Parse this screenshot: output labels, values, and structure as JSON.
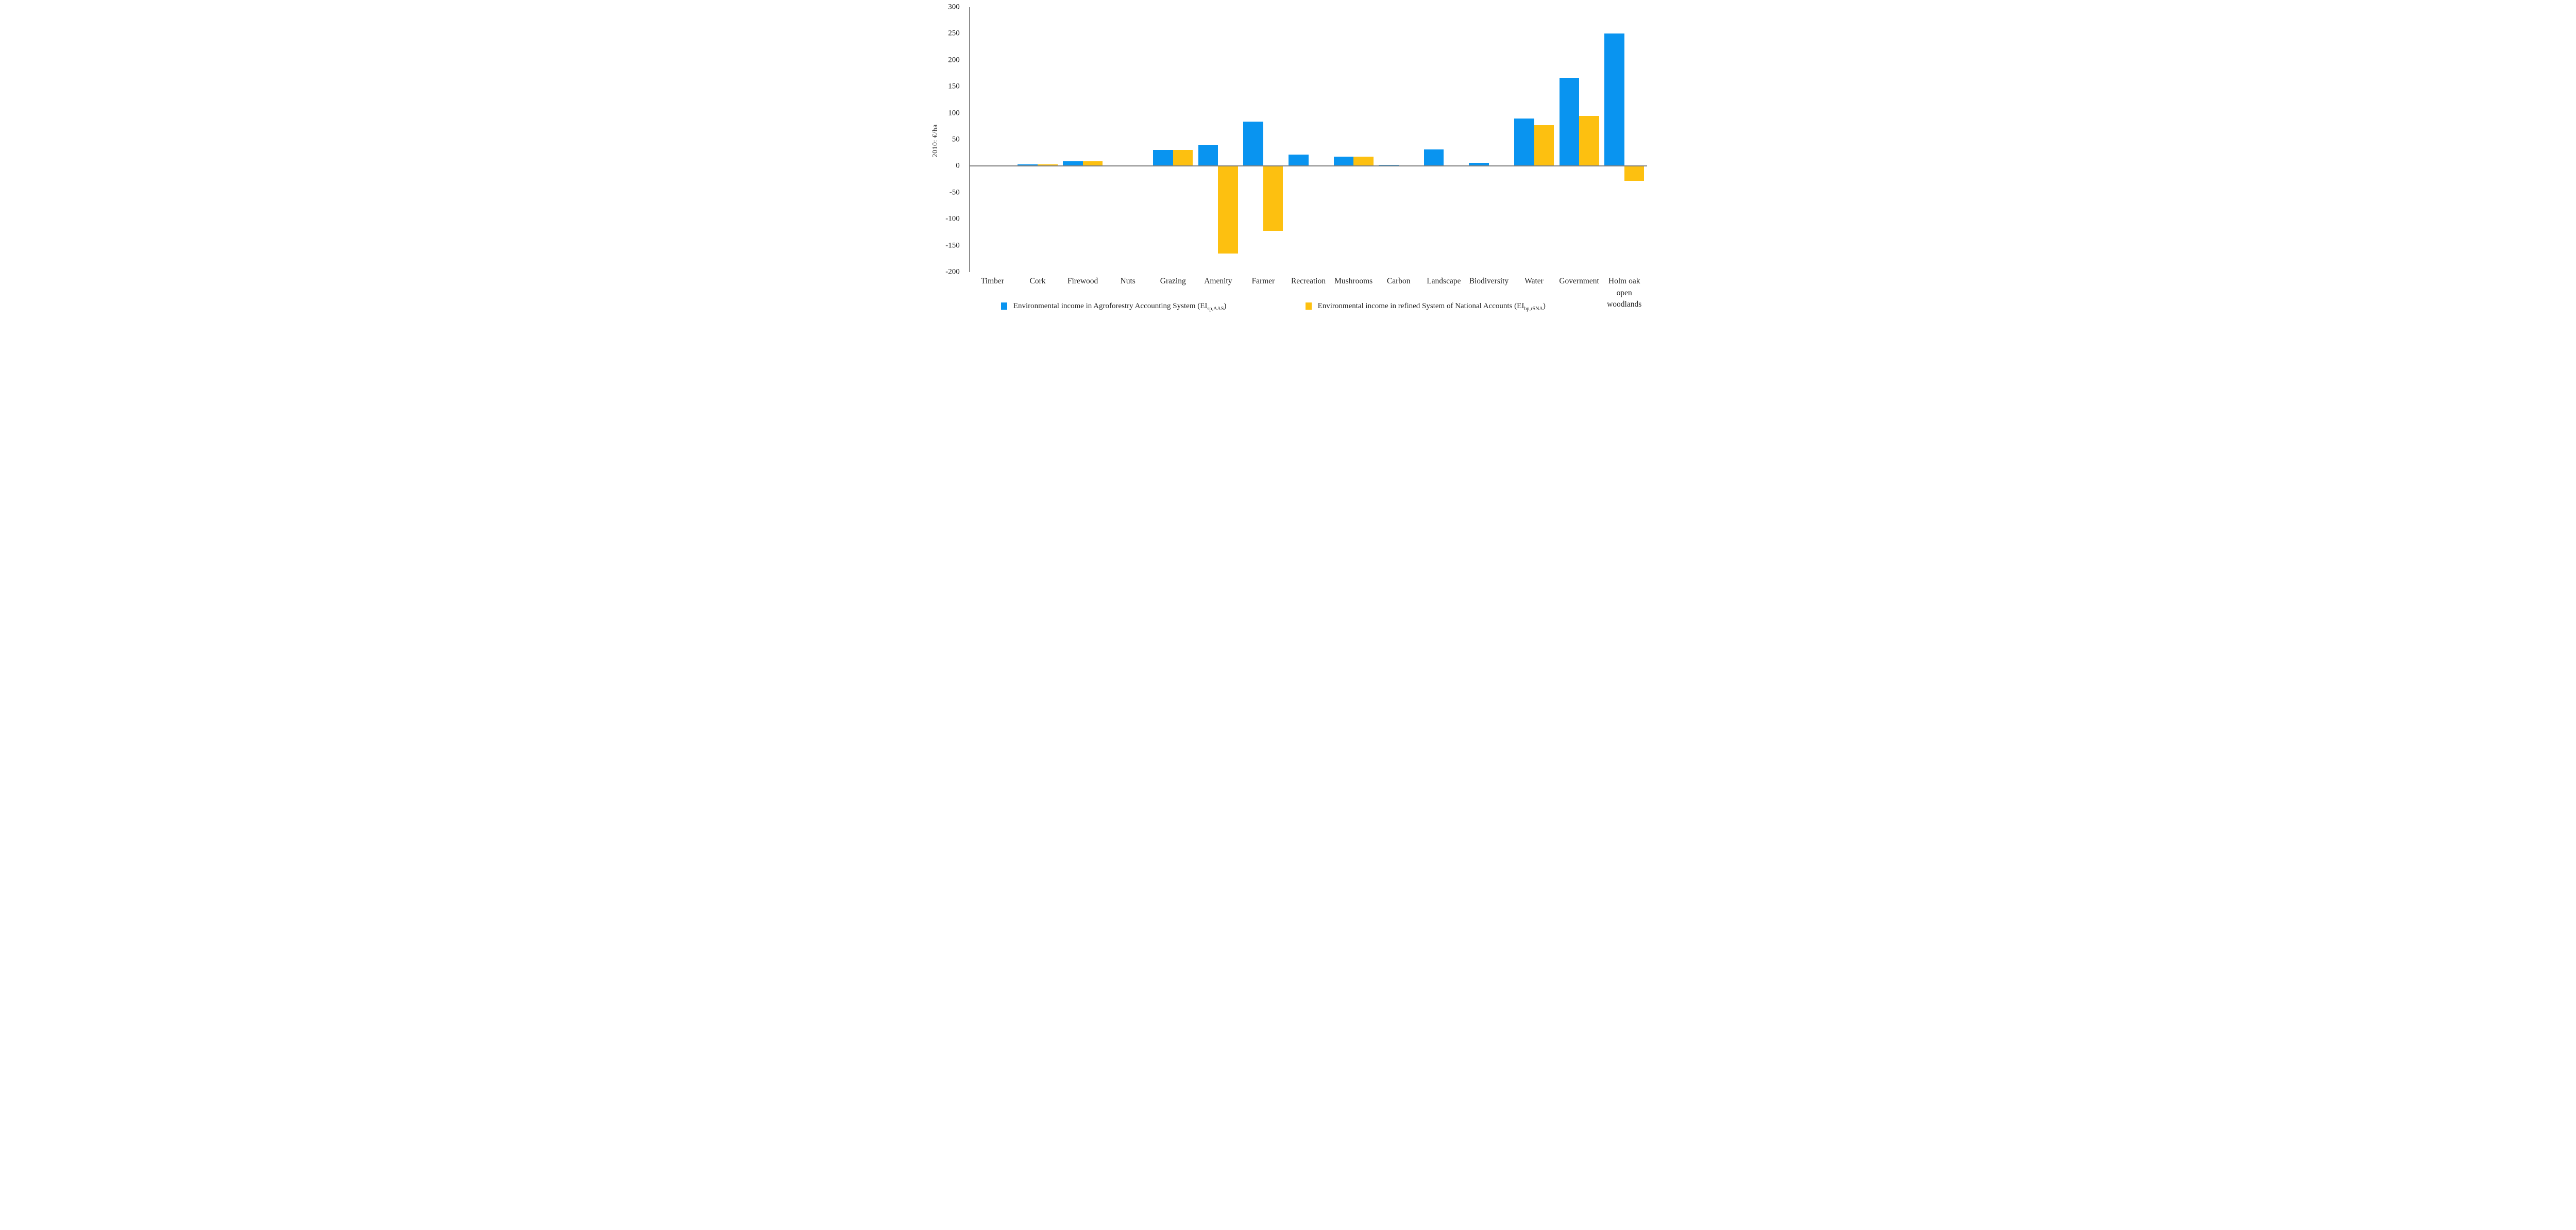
{
  "chart_data": {
    "type": "bar",
    "title": "",
    "xlabel": "",
    "ylabel": "2010: €/ha",
    "ylim": [
      -200,
      300
    ],
    "y_ticks": [
      300,
      250,
      200,
      150,
      100,
      50,
      0,
      -50,
      -100,
      -150,
      -200
    ],
    "grid": false,
    "legend_position": "bottom",
    "categories": [
      "Timber",
      "Cork",
      "Firewood",
      "Nuts",
      "Grazing",
      "Amenity",
      "Farmer",
      "Recreation",
      "Mushrooms",
      "Carbon",
      "Landscape",
      "Biodiversity",
      "Water",
      "Government",
      "Holm oak open woodlands"
    ],
    "series": [
      {
        "name": "Environmental income in Agroforestry Accounting System (EI sp,AAS)",
        "color": "#0994F0",
        "values": [
          1,
          3,
          9,
          1,
          31,
          40,
          84,
          22,
          18,
          2,
          32,
          6,
          90,
          167,
          250
        ]
      },
      {
        "name": "Environmental income in refined System of National Accounts (EI bp,rSNA)",
        "color": "#FDC010",
        "values": [
          1,
          3,
          9,
          1,
          31,
          -165,
          -122,
          0,
          18,
          0,
          0,
          0,
          77,
          95,
          -28
        ]
      }
    ]
  },
  "y_axis": {
    "title": "2010: €/ha"
  },
  "legend": {
    "items": [
      {
        "prefix": "Environmental income in Agroforestry Accounting System (EI",
        "sub": "sp,AAS",
        "suffix": ")",
        "color": "#0994F0"
      },
      {
        "prefix": "Environmental income in refined System of National Accounts (EI",
        "sub": "bp,rSNA",
        "suffix": ")",
        "color": "#FDC010"
      }
    ]
  },
  "colors": {
    "axis_line": "#8C8C8C",
    "zero_line": "#7F7F7F",
    "text": "#1F1F1F",
    "background": "#FFFFFF"
  }
}
